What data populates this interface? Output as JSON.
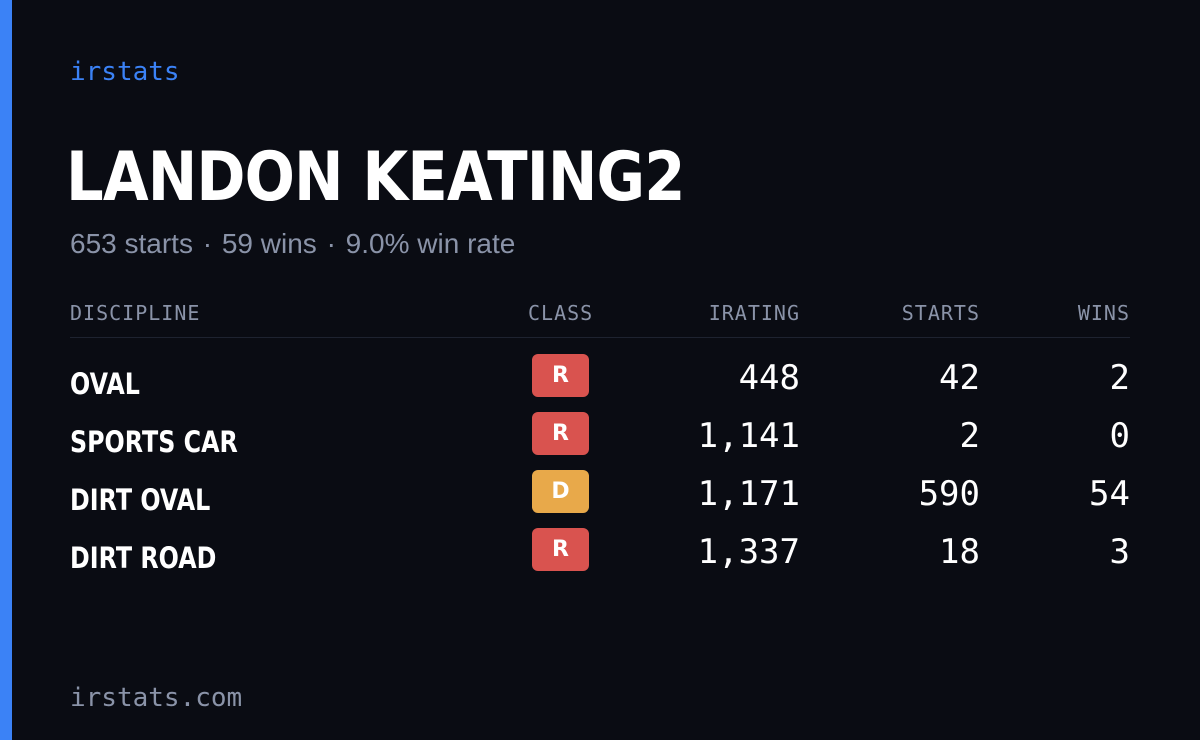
{
  "brand": "irstats",
  "driver": {
    "name": "LANDON KEATING2",
    "starts_text": "653 starts",
    "wins_text": "59 wins",
    "win_rate_text": "9.0% win rate",
    "separator": "·"
  },
  "table": {
    "headers": {
      "discipline": "DISCIPLINE",
      "class": "CLASS",
      "irating": "IRATING",
      "starts": "STARTS",
      "wins": "WINS"
    },
    "rows": [
      {
        "discipline": "OVAL",
        "class": "R",
        "class_color": "#d9534f",
        "irating": "448",
        "starts": "42",
        "wins": "2"
      },
      {
        "discipline": "SPORTS CAR",
        "class": "R",
        "class_color": "#d9534f",
        "irating": "1,141",
        "starts": "2",
        "wins": "0"
      },
      {
        "discipline": "DIRT OVAL",
        "class": "D",
        "class_color": "#e8a94a",
        "irating": "1,171",
        "starts": "590",
        "wins": "54"
      },
      {
        "discipline": "DIRT ROAD",
        "class": "R",
        "class_color": "#d9534f",
        "irating": "1,337",
        "starts": "18",
        "wins": "3"
      }
    ]
  },
  "footer": {
    "domain": "irstats.com"
  },
  "colors": {
    "background": "#0a0c13",
    "accent": "#3b82f6",
    "muted_text": "#8a93a8",
    "class_r": "#d9534f",
    "class_d": "#e8a94a"
  }
}
